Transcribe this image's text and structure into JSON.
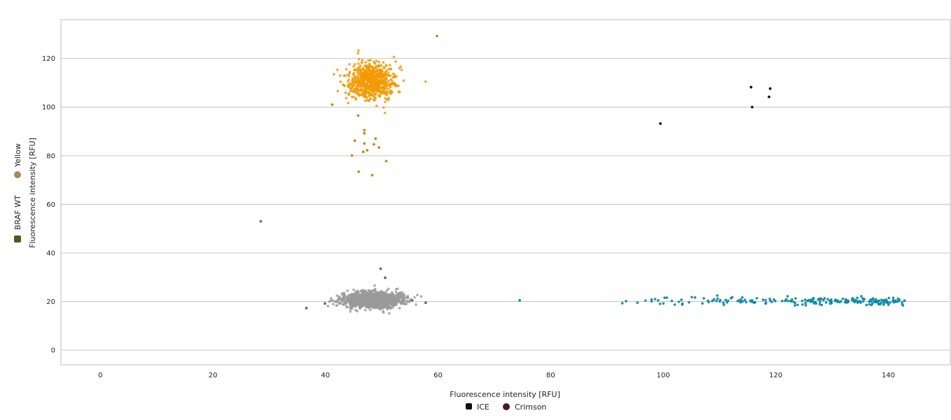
{
  "chart_data": {
    "type": "scatter",
    "xlabel": "Fluorescence intensity [RFU]",
    "ylabel": "Fluorescence intensity [RFU]",
    "xlim": [
      -7,
      151
    ],
    "ylim": [
      -6,
      136
    ],
    "x_ticks": [
      "0",
      "20",
      "40",
      "60",
      "80",
      "100",
      "120",
      "140"
    ],
    "y_ticks": [
      "0",
      "20",
      "40",
      "60",
      "80",
      "100",
      "120"
    ],
    "grid": "horizontal",
    "x_legend": [
      {
        "label": "ICE",
        "color": "#111111",
        "shape": "square"
      },
      {
        "label": "Crimson",
        "color": "#4a1a1a",
        "shape": "circle"
      }
    ],
    "y_legend": [
      {
        "label": "Yellow",
        "color": "#a48b52",
        "shape": "circle"
      },
      {
        "label": "BRAF WT",
        "color": "#4f5a1e",
        "shape": "square"
      }
    ],
    "colors": {
      "cluster_yellow": "#f29a06",
      "cluster_yellow_outline": "#b57e1c",
      "cluster_gray": "#9a9a9a",
      "cluster_teal": "#0e8aa6",
      "cluster_black": "#111111"
    },
    "clusters": [
      {
        "id": "yellow-positive",
        "color": "#f29a06",
        "center": [
          48.2,
          110.5
        ],
        "spread": [
          2.0,
          3.6
        ],
        "count": 700,
        "note": "dense droplet cluster"
      },
      {
        "id": "double-negative",
        "color": "#9a9a9a",
        "center": [
          48.5,
          20.8
        ],
        "spread": [
          2.6,
          1.5
        ],
        "count": 1600,
        "note": "dense droplet cluster"
      },
      {
        "id": "ice-positive",
        "color": "#0e8aa6",
        "center": [
          125,
          20.2
        ],
        "spread": [
          10,
          0.9
        ],
        "count": 210,
        "x_range": [
          92,
          143
        ],
        "note": "horizontal band"
      }
    ],
    "outlier_points": [
      {
        "x": 59.8,
        "y": 129.2,
        "color": "#c08a1d"
      },
      {
        "x": 41.2,
        "y": 101,
        "color": "#c08a1d"
      },
      {
        "x": 45.8,
        "y": 96.5,
        "color": "#c08a1d"
      },
      {
        "x": 46.9,
        "y": 90.5,
        "color": "#c08a1d"
      },
      {
        "x": 46.9,
        "y": 89.2,
        "color": "#c08a1d"
      },
      {
        "x": 45.2,
        "y": 86.2,
        "color": "#c08a1d"
      },
      {
        "x": 48.9,
        "y": 87.0,
        "color": "#c08a1d"
      },
      {
        "x": 46.9,
        "y": 85.0,
        "color": "#c08a1d"
      },
      {
        "x": 48.6,
        "y": 84.7,
        "color": "#c08a1d"
      },
      {
        "x": 49.5,
        "y": 83.4,
        "color": "#c08a1d"
      },
      {
        "x": 47.4,
        "y": 82.2,
        "color": "#c08a1d"
      },
      {
        "x": 46.7,
        "y": 81.6,
        "color": "#c08a1d"
      },
      {
        "x": 44.7,
        "y": 80.1,
        "color": "#c08a1d"
      },
      {
        "x": 50.8,
        "y": 77.8,
        "color": "#c08a1d"
      },
      {
        "x": 45.9,
        "y": 73.4,
        "color": "#c08a1d"
      },
      {
        "x": 48.3,
        "y": 72.0,
        "color": "#c08a1d"
      },
      {
        "x": 28.5,
        "y": 53.0,
        "color": "#6b6b6b"
      },
      {
        "x": 49.8,
        "y": 33.5,
        "color": "#6b6b6b"
      },
      {
        "x": 50.6,
        "y": 29.8,
        "color": "#6b6b6b"
      },
      {
        "x": 36.6,
        "y": 17.3,
        "color": "#6b6b6b"
      },
      {
        "x": 39.9,
        "y": 19.2,
        "color": "#6b6b6b"
      },
      {
        "x": 57.8,
        "y": 19.5,
        "color": "#6b6b6b"
      },
      {
        "x": 55.4,
        "y": 20.5,
        "color": "#6b6b6b"
      },
      {
        "x": 74.5,
        "y": 20.5,
        "color": "#0e8aa6"
      },
      {
        "x": 99.5,
        "y": 93.2,
        "color": "#111111"
      },
      {
        "x": 115.6,
        "y": 108.2,
        "color": "#111111"
      },
      {
        "x": 119.0,
        "y": 107.6,
        "color": "#111111"
      },
      {
        "x": 118.8,
        "y": 104.2,
        "color": "#111111"
      },
      {
        "x": 115.8,
        "y": 100.0,
        "color": "#111111"
      }
    ]
  }
}
